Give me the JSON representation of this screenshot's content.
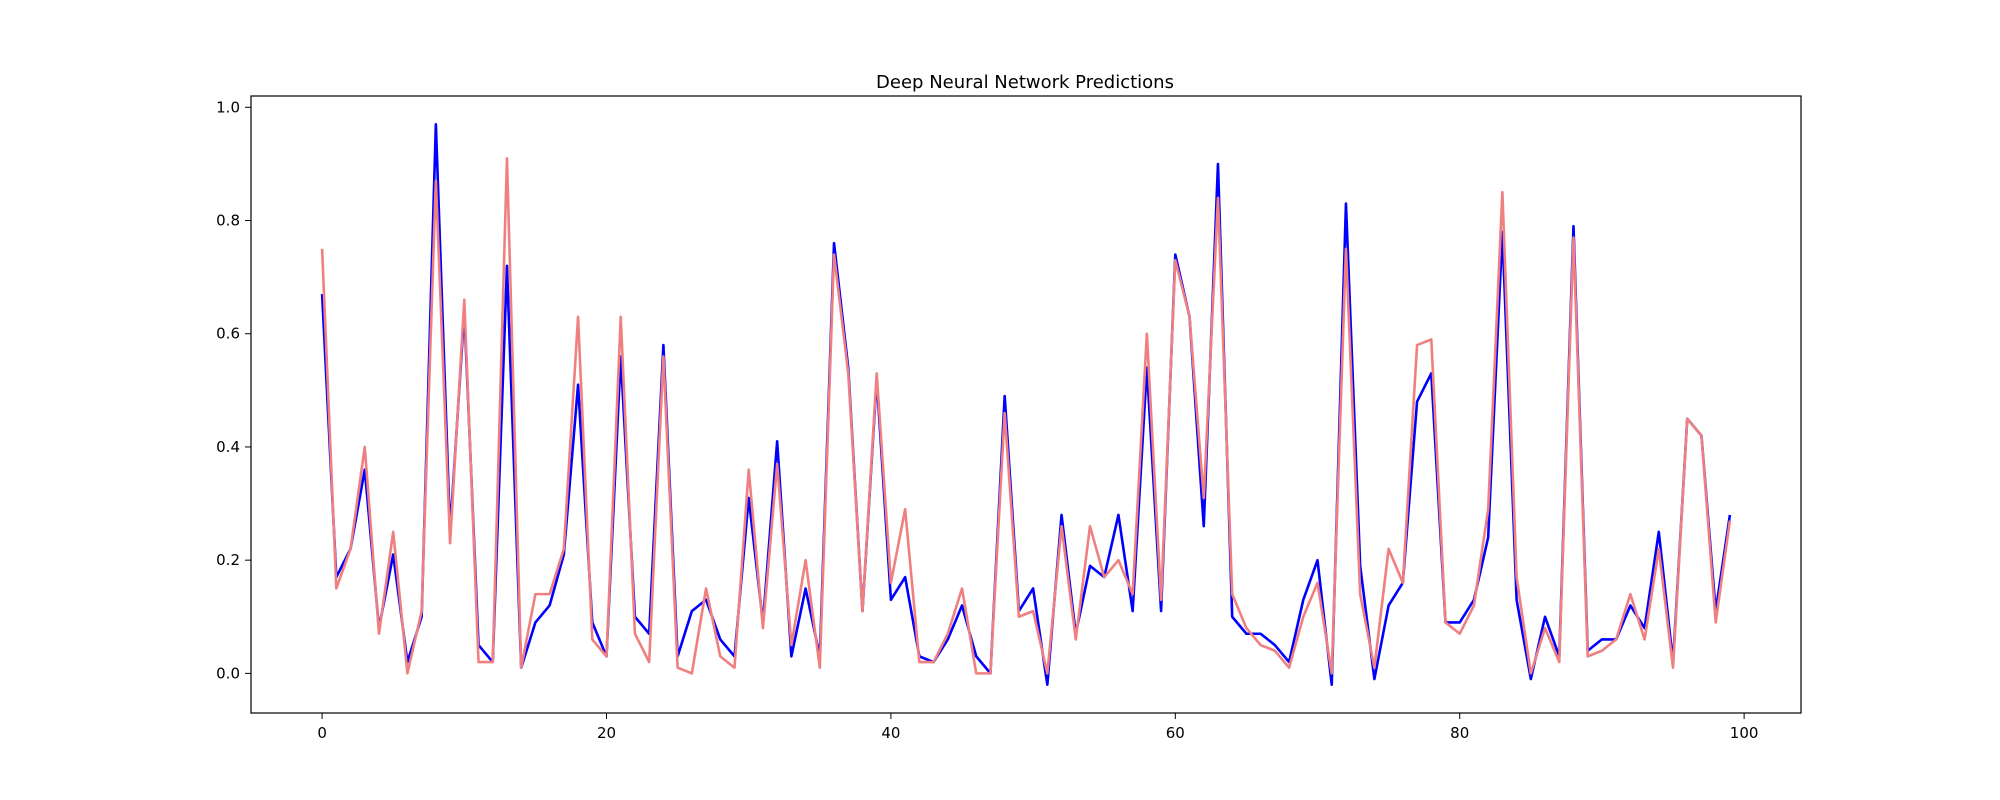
{
  "chart_data": {
    "type": "line",
    "title": "Deep Neural Network Predictions",
    "xlabel": "",
    "ylabel": "",
    "xlim": [
      -5,
      104
    ],
    "ylim": [
      -0.07,
      1.02
    ],
    "x_ticks": [
      0,
      20,
      40,
      60,
      80,
      100
    ],
    "y_ticks": [
      0.0,
      0.2,
      0.4,
      0.6,
      0.8,
      1.0
    ],
    "x_tick_labels": [
      "0",
      "20",
      "40",
      "60",
      "80",
      "100"
    ],
    "y_tick_labels": [
      "0.0",
      "0.2",
      "0.4",
      "0.6",
      "0.8",
      "1.0"
    ],
    "grid": false,
    "x": [
      0,
      1,
      2,
      3,
      4,
      5,
      6,
      7,
      8,
      9,
      10,
      11,
      12,
      13,
      14,
      15,
      16,
      17,
      18,
      19,
      20,
      21,
      22,
      23,
      24,
      25,
      26,
      27,
      28,
      29,
      30,
      31,
      32,
      33,
      34,
      35,
      36,
      37,
      38,
      39,
      40,
      41,
      42,
      43,
      44,
      45,
      46,
      47,
      48,
      49,
      50,
      51,
      52,
      53,
      54,
      55,
      56,
      57,
      58,
      59,
      60,
      61,
      62,
      63,
      64,
      65,
      66,
      67,
      68,
      69,
      70,
      71,
      72,
      73,
      74,
      75,
      76,
      77,
      78,
      79,
      80,
      81,
      82,
      83,
      84,
      85,
      86,
      87,
      88,
      89,
      90,
      91,
      92,
      93,
      94,
      95,
      96,
      97,
      98,
      99
    ],
    "series": [
      {
        "color": "#0000ff",
        "values": [
          0.67,
          0.17,
          0.22,
          0.36,
          0.08,
          0.21,
          0.02,
          0.1,
          0.97,
          0.25,
          0.64,
          0.05,
          0.02,
          0.72,
          0.01,
          0.09,
          0.12,
          0.21,
          0.51,
          0.09,
          0.03,
          0.56,
          0.1,
          0.07,
          0.58,
          0.03,
          0.11,
          0.13,
          0.06,
          0.03,
          0.31,
          0.09,
          0.41,
          0.03,
          0.15,
          0.03,
          0.76,
          0.54,
          0.11,
          0.52,
          0.13,
          0.17,
          0.03,
          0.02,
          0.06,
          0.12,
          0.03,
          0.0,
          0.49,
          0.11,
          0.15,
          -0.02,
          0.28,
          0.07,
          0.19,
          0.17,
          0.28,
          0.11,
          0.54,
          0.11,
          0.74,
          0.63,
          0.26,
          0.9,
          0.1,
          0.07,
          0.07,
          0.05,
          0.02,
          0.13,
          0.2,
          -0.02,
          0.83,
          0.19,
          -0.01,
          0.12,
          0.16,
          0.48,
          0.53,
          0.09,
          0.09,
          0.13,
          0.24,
          0.78,
          0.13,
          -0.01,
          0.1,
          0.03,
          0.79,
          0.04,
          0.06,
          0.06,
          0.12,
          0.08,
          0.25,
          0.02,
          0.45,
          0.42,
          0.11,
          0.28
        ]
      },
      {
        "color": "#f08080",
        "values": [
          0.75,
          0.15,
          0.22,
          0.4,
          0.07,
          0.25,
          0.0,
          0.11,
          0.87,
          0.23,
          0.66,
          0.02,
          0.02,
          0.91,
          0.01,
          0.14,
          0.14,
          0.22,
          0.63,
          0.06,
          0.03,
          0.63,
          0.07,
          0.02,
          0.56,
          0.01,
          0.0,
          0.15,
          0.03,
          0.01,
          0.36,
          0.08,
          0.37,
          0.05,
          0.2,
          0.01,
          0.74,
          0.53,
          0.11,
          0.53,
          0.16,
          0.29,
          0.02,
          0.02,
          0.07,
          0.15,
          0.0,
          0.0,
          0.46,
          0.1,
          0.11,
          0.0,
          0.26,
          0.06,
          0.26,
          0.17,
          0.2,
          0.14,
          0.6,
          0.13,
          0.73,
          0.63,
          0.31,
          0.84,
          0.14,
          0.08,
          0.05,
          0.04,
          0.01,
          0.1,
          0.16,
          0.0,
          0.75,
          0.14,
          0.01,
          0.22,
          0.16,
          0.58,
          0.59,
          0.09,
          0.07,
          0.12,
          0.29,
          0.85,
          0.17,
          0.0,
          0.08,
          0.02,
          0.77,
          0.03,
          0.04,
          0.06,
          0.14,
          0.06,
          0.22,
          0.01,
          0.45,
          0.42,
          0.09,
          0.27
        ]
      }
    ]
  }
}
